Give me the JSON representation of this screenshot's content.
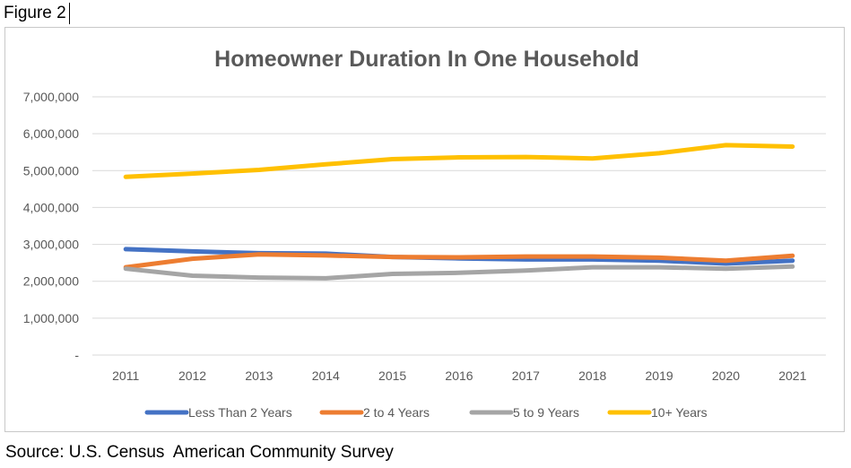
{
  "figure_label": "Figure 2",
  "source_text": "Source: U.S. Census  American Community Survey",
  "chart_data": {
    "type": "line",
    "title": "Homeowner Duration In One Household",
    "xlabel": "",
    "ylabel": "",
    "categories": [
      "2011",
      "2012",
      "2013",
      "2014",
      "2015",
      "2016",
      "2017",
      "2018",
      "2019",
      "2020",
      "2021"
    ],
    "ylim": [
      0,
      7000000
    ],
    "yticks": [
      {
        "value": 0,
        "label": "-"
      },
      {
        "value": 1000000,
        "label": "1,000,000"
      },
      {
        "value": 2000000,
        "label": "2,000,000"
      },
      {
        "value": 3000000,
        "label": "3,000,000"
      },
      {
        "value": 4000000,
        "label": "4,000,000"
      },
      {
        "value": 5000000,
        "label": "5,000,000"
      },
      {
        "value": 6000000,
        "label": "6,000,000"
      },
      {
        "value": 7000000,
        "label": "7,000,000"
      }
    ],
    "grid": true,
    "legend_position": "bottom",
    "series": [
      {
        "name": "Less Than 2 Years",
        "color": "#4472C4",
        "values": [
          2870000,
          2810000,
          2760000,
          2750000,
          2660000,
          2620000,
          2590000,
          2590000,
          2560000,
          2480000,
          2560000
        ]
      },
      {
        "name": "2 to 4 Years",
        "color": "#ED7D31",
        "values": [
          2380000,
          2610000,
          2730000,
          2700000,
          2660000,
          2650000,
          2670000,
          2670000,
          2640000,
          2560000,
          2690000
        ]
      },
      {
        "name": "5 to 9 Years",
        "color": "#A5A5A5",
        "values": [
          2340000,
          2150000,
          2100000,
          2080000,
          2200000,
          2230000,
          2290000,
          2380000,
          2380000,
          2340000,
          2400000
        ]
      },
      {
        "name": "10+ Years",
        "color": "#FFC000",
        "values": [
          4830000,
          4920000,
          5020000,
          5170000,
          5310000,
          5360000,
          5370000,
          5330000,
          5470000,
          5690000,
          5650000
        ]
      }
    ]
  }
}
